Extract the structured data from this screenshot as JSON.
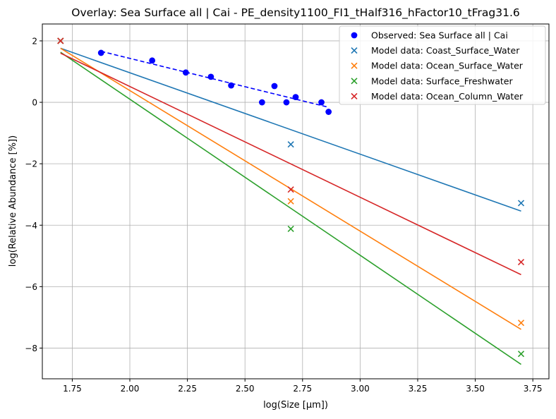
{
  "chart_data": {
    "type": "scatter",
    "title": "Overlay: Sea Surface all | Cai - PE_density1100_FI1_tHalf316_hFactor10_tFrag31.6",
    "xlabel": "log(Size [µm])",
    "ylabel": "log(Relative Abundance [%])",
    "xlim": [
      1.62,
      3.82
    ],
    "ylim": [
      -9.0,
      2.55
    ],
    "xticks": [
      1.75,
      2.0,
      2.25,
      2.5,
      2.75,
      3.0,
      3.25,
      3.5,
      3.75
    ],
    "xtick_labels": [
      "1.75",
      "2.00",
      "2.25",
      "2.50",
      "2.75",
      "3.00",
      "3.25",
      "3.50",
      "3.75"
    ],
    "yticks": [
      -8,
      -6,
      -4,
      -2,
      0,
      2
    ],
    "ytick_labels": [
      "−8",
      "−6",
      "−4",
      "−2",
      "0",
      "2"
    ],
    "grid": true,
    "legend_position": "top-right",
    "observed": {
      "name": "Observed: Sea Surface all | Cai",
      "color": "#0000ff",
      "marker": "circle",
      "x": [
        1.875,
        2.097,
        2.243,
        2.352,
        2.44,
        2.574,
        2.628,
        2.68,
        2.72,
        2.832,
        2.863
      ],
      "y": [
        1.61,
        1.36,
        0.97,
        0.83,
        0.55,
        0.0,
        0.53,
        0.0,
        0.17,
        0.0,
        -0.31
      ],
      "fit": {
        "x": [
          1.875,
          2.863
        ],
        "y": [
          1.66,
          -0.16
        ],
        "style": "dashed"
      }
    },
    "series": [
      {
        "name": "Model data: Coast_Surface_Water",
        "color": "#1f77b4",
        "x": [
          1.699,
          2.699,
          3.699
        ],
        "y": [
          2.0,
          -1.37,
          -3.28
        ],
        "fit": {
          "x": [
            1.699,
            3.699
          ],
          "y": [
            1.76,
            -3.54
          ]
        }
      },
      {
        "name": "Model data: Ocean_Surface_Water",
        "color": "#ff7f0e",
        "x": [
          1.699,
          2.699,
          3.699
        ],
        "y": [
          2.0,
          -3.22,
          -7.18
        ],
        "fit": {
          "x": [
            1.699,
            3.699
          ],
          "y": [
            1.76,
            -7.39
          ]
        }
      },
      {
        "name": "Model data: Surface_Freshwater",
        "color": "#2ca02c",
        "x": [
          1.699,
          2.699,
          3.699
        ],
        "y": [
          2.0,
          -4.12,
          -8.19
        ],
        "fit": {
          "x": [
            1.699,
            3.699
          ],
          "y": [
            1.63,
            -8.53
          ]
        }
      },
      {
        "name": "Model data: Ocean_Column_Water",
        "color": "#d62728",
        "x": [
          1.699,
          2.699,
          3.699
        ],
        "y": [
          2.0,
          -2.84,
          -5.2
        ],
        "fit": {
          "x": [
            1.699,
            3.699
          ],
          "y": [
            1.6,
            -5.61
          ]
        }
      }
    ]
  }
}
